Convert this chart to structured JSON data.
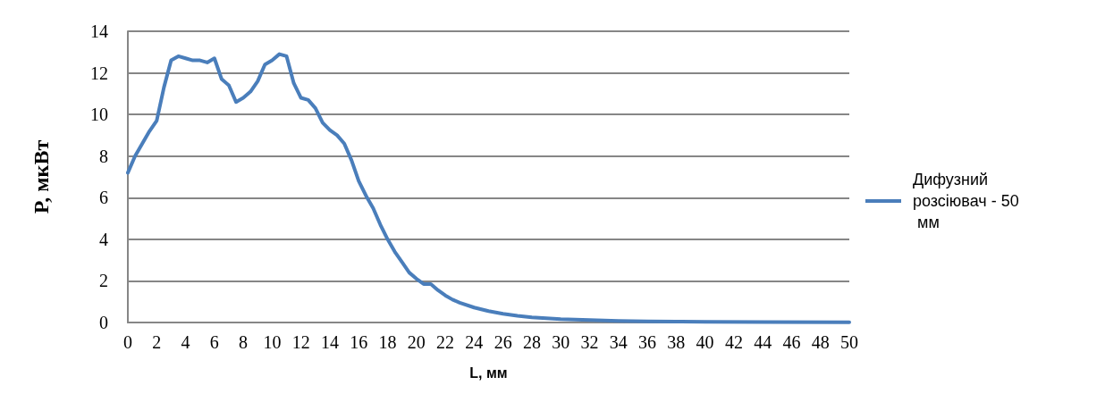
{
  "chart_data": {
    "type": "line",
    "xlabel": "L, мм",
    "ylabel": "P, мкВт",
    "xlim": [
      0,
      50
    ],
    "xticks": [
      0,
      2,
      4,
      6,
      8,
      10,
      12,
      14,
      16,
      18,
      20,
      22,
      24,
      26,
      28,
      30,
      32,
      34,
      36,
      38,
      40,
      42,
      44,
      46,
      48,
      50
    ],
    "ylim": [
      0,
      14
    ],
    "yticks": [
      0,
      2,
      4,
      6,
      8,
      10,
      12,
      14
    ],
    "grid": "y",
    "legend": "right",
    "marker": "none",
    "line_style": "solid",
    "series": [
      {
        "name": "Дифузний розсіювач - 50 мм",
        "color": "#4a7ebb",
        "x": [
          0,
          0.5,
          1,
          1.5,
          2,
          2.5,
          3,
          3.5,
          4,
          4.5,
          5,
          5.5,
          6,
          6.5,
          7,
          7.5,
          8,
          8.5,
          9,
          9.5,
          10,
          10.5,
          11,
          11.5,
          12,
          12.5,
          13,
          13.5,
          14,
          14.5,
          15,
          15.5,
          16,
          16.5,
          17,
          17.5,
          18,
          18.5,
          19,
          19.5,
          20,
          20.5,
          21,
          21.5,
          22,
          22.5,
          23,
          24,
          25,
          26,
          27,
          28,
          29,
          30,
          32,
          34,
          36,
          38,
          40,
          44,
          50
        ],
        "values": [
          7.2,
          8.0,
          8.6,
          9.2,
          9.7,
          11.3,
          12.6,
          12.8,
          12.7,
          12.6,
          12.6,
          12.5,
          12.7,
          11.7,
          11.4,
          10.6,
          10.8,
          11.1,
          11.6,
          12.4,
          12.6,
          12.9,
          12.8,
          11.5,
          10.8,
          10.7,
          10.3,
          9.6,
          9.25,
          9.0,
          8.6,
          7.8,
          6.8,
          6.1,
          5.5,
          4.7,
          4.0,
          3.4,
          2.9,
          2.4,
          2.1,
          1.85,
          1.85,
          1.55,
          1.3,
          1.1,
          0.95,
          0.72,
          0.55,
          0.42,
          0.32,
          0.25,
          0.2,
          0.16,
          0.12,
          0.08,
          0.05,
          0.04,
          0.03,
          0.02,
          0.01
        ]
      }
    ]
  }
}
